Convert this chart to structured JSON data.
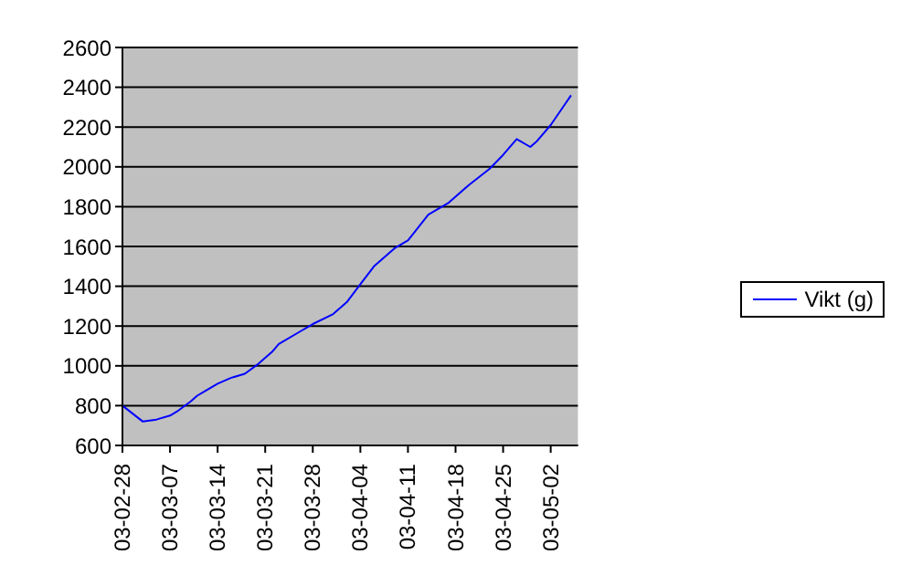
{
  "chart_data": {
    "type": "line",
    "x": [
      "--02-28",
      "--03-03",
      "--03-05",
      "--03-07",
      "--03-08",
      "--03-10",
      "--03-11",
      "--03-12",
      "--03-14",
      "--03-16",
      "--03-18",
      "--03-20",
      "--03-22",
      "--03-23",
      "--03-26",
      "--03-28",
      "--03-31",
      "--04-02",
      "--04-04",
      "--04-06",
      "--04-09",
      "--04-11",
      "--04-14",
      "--04-17",
      "--04-20",
      "--04-23",
      "--04-25",
      "--04-27",
      "--04-29",
      "--04-30",
      "--05-02",
      "--05-04",
      "--05-05"
    ],
    "series": [
      {
        "name": "Vikt (g)",
        "color": "#0000ff",
        "values": [
          800,
          720,
          730,
          750,
          770,
          820,
          850,
          870,
          910,
          940,
          960,
          1010,
          1070,
          1110,
          1170,
          1210,
          1260,
          1320,
          1410,
          1500,
          1590,
          1630,
          1760,
          1820,
          1910,
          1990,
          2060,
          2140,
          2100,
          2130,
          2210,
          2310,
          2360
        ]
      }
    ],
    "xlim": [
      "--02-28",
      "--05-06"
    ],
    "xticks": [
      {
        "value": "--02-28",
        "label": "03-02-28"
      },
      {
        "value": "--03-07",
        "label": "03-03-07"
      },
      {
        "value": "--03-14",
        "label": "03-03-14"
      },
      {
        "value": "--03-21",
        "label": "03-03-21"
      },
      {
        "value": "--03-28",
        "label": "03-03-28"
      },
      {
        "value": "--04-04",
        "label": "03-04-04"
      },
      {
        "value": "--04-11",
        "label": "03-04-11"
      },
      {
        "value": "--04-18",
        "label": "03-04-18"
      },
      {
        "value": "--04-25",
        "label": "03-04-25"
      },
      {
        "value": "--05-02",
        "label": "03-05-02"
      }
    ],
    "ylim": [
      600,
      2600
    ],
    "yticks": [
      600,
      800,
      1000,
      1200,
      1400,
      1600,
      1800,
      2000,
      2200,
      2400,
      2600
    ],
    "grid": "y",
    "legend": "right",
    "marker": "none",
    "line_style": "solid"
  }
}
